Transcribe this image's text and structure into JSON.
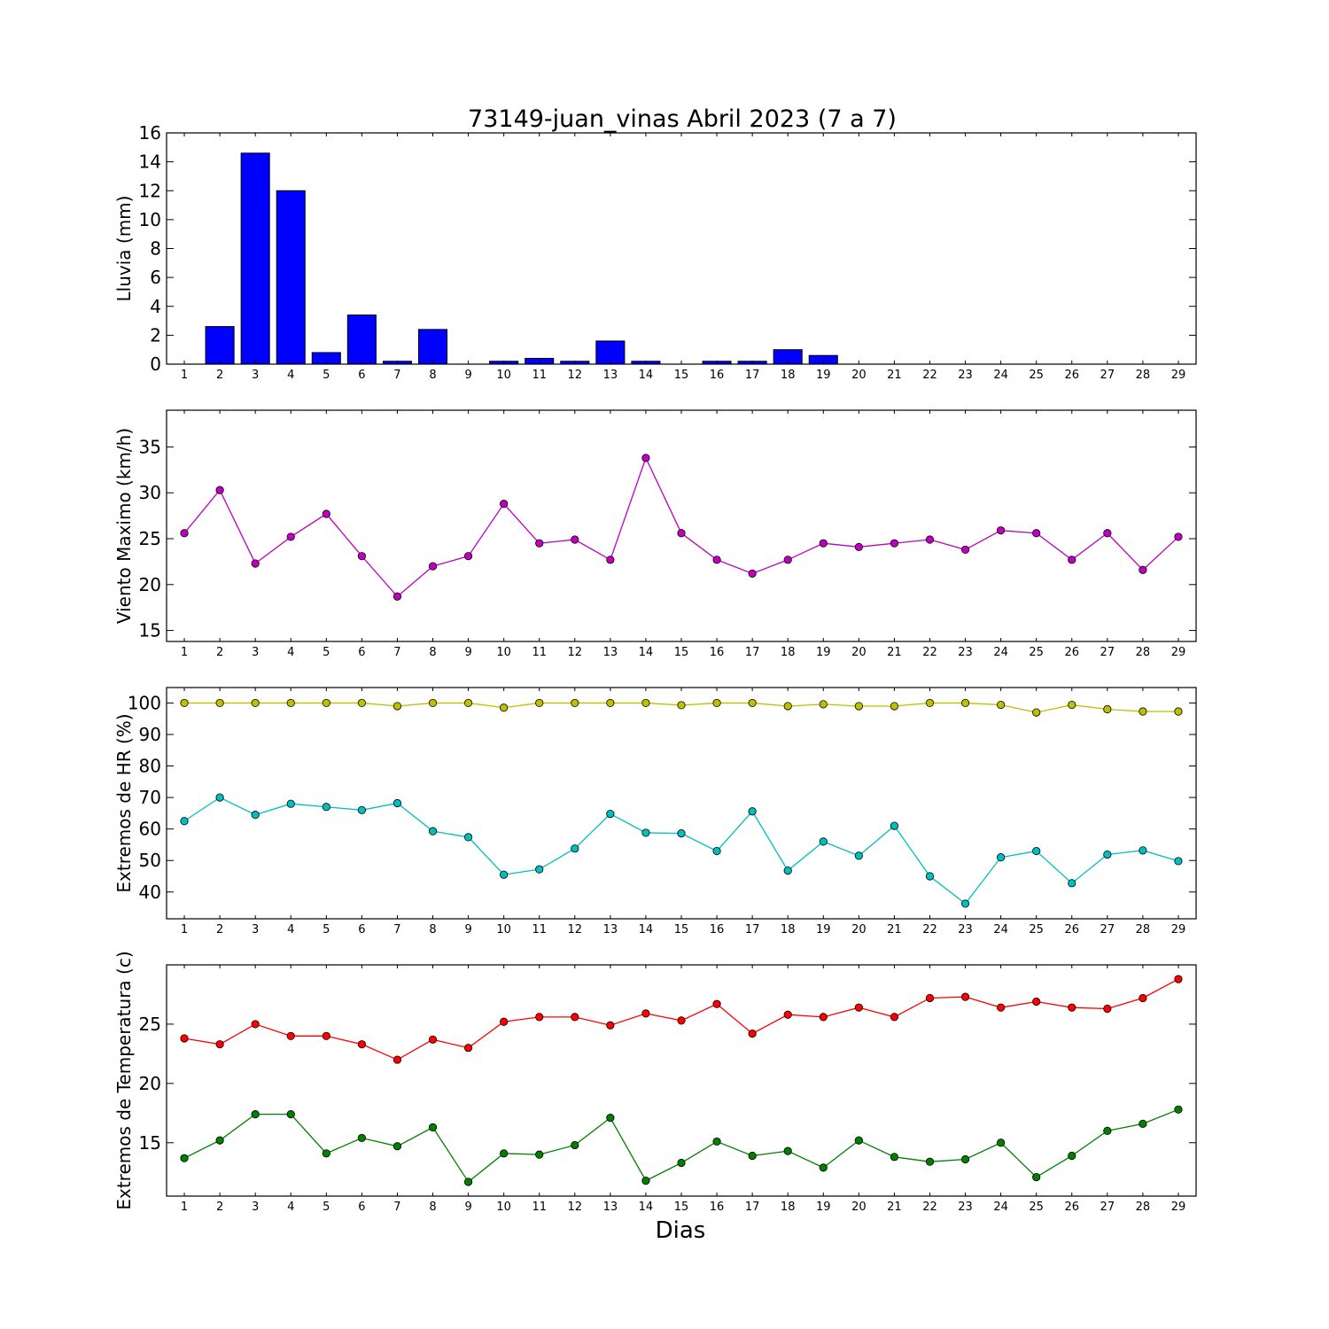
{
  "title": "73149-juan_vinas Abril 2023  (7 a 7)",
  "xlabel": "Dias",
  "chart_data": [
    {
      "type": "bar",
      "title": "73149-juan_vinas Abril 2023  (7 a 7)",
      "ylabel": "Lluvia (mm)",
      "xlabel": "",
      "x": [
        1,
        2,
        3,
        4,
        5,
        6,
        7,
        8,
        9,
        10,
        11,
        12,
        13,
        14,
        15,
        16,
        17,
        18,
        19,
        20,
        21,
        22,
        23,
        24,
        25,
        26,
        27,
        28,
        29
      ],
      "values": [
        0,
        2.6,
        14.6,
        12.0,
        0.8,
        3.4,
        0.2,
        2.4,
        0,
        0.2,
        0.4,
        0.2,
        1.6,
        0.2,
        0,
        0.2,
        0.2,
        1.0,
        0.6,
        0,
        0,
        0,
        0,
        0,
        0,
        0,
        0,
        0,
        0
      ],
      "ylim": [
        0,
        16
      ],
      "yticks": [
        0,
        2,
        4,
        6,
        8,
        10,
        12,
        14,
        16
      ],
      "xlim": [
        0.5,
        29.5
      ],
      "grid": false,
      "color": "#0000ff"
    },
    {
      "type": "line",
      "ylabel": "Viento Maximo (km/h)",
      "x": [
        1,
        2,
        3,
        4,
        5,
        6,
        7,
        8,
        9,
        10,
        11,
        12,
        13,
        14,
        15,
        16,
        17,
        18,
        19,
        20,
        21,
        22,
        23,
        24,
        25,
        26,
        27,
        28,
        29
      ],
      "series": [
        {
          "color": "#bf00bf",
          "values": [
            25.6,
            30.3,
            22.3,
            25.2,
            27.7,
            23.1,
            18.7,
            22.0,
            23.1,
            28.8,
            24.5,
            24.9,
            22.7,
            33.8,
            25.6,
            22.7,
            21.2,
            22.7,
            24.5,
            24.1,
            24.5,
            24.9,
            23.8,
            25.9,
            25.6,
            22.7,
            25.6,
            21.6,
            25.2
          ]
        }
      ],
      "ylim": [
        13.8,
        39
      ],
      "yticks": [
        15,
        20,
        25,
        30,
        35
      ],
      "xlim": [
        0.5,
        29.5
      ],
      "grid": false
    },
    {
      "type": "line",
      "ylabel": "Extremos de HR (%)",
      "x": [
        1,
        2,
        3,
        4,
        5,
        6,
        7,
        8,
        9,
        10,
        11,
        12,
        13,
        14,
        15,
        16,
        17,
        18,
        19,
        20,
        21,
        22,
        23,
        24,
        25,
        26,
        27,
        28,
        29
      ],
      "series": [
        {
          "color": "#bfbf00",
          "values": [
            100,
            100,
            100,
            100,
            100,
            100,
            99,
            100,
            100,
            98.5,
            100,
            100,
            100,
            100,
            99.3,
            100,
            100,
            99,
            99.6,
            99,
            99,
            100,
            100,
            99.4,
            97,
            99.4,
            98,
            97.3,
            97.3
          ]
        },
        {
          "color": "#00bfbf",
          "values": [
            62.5,
            70,
            64.5,
            68,
            67,
            66,
            68.2,
            59.3,
            57.4,
            45.5,
            47.2,
            53.8,
            64.8,
            58.8,
            58.6,
            53,
            65.6,
            46.8,
            56,
            51.5,
            61,
            45,
            36.3,
            51,
            53,
            42.8,
            51.9,
            53.2,
            49.8
          ]
        }
      ],
      "ylim": [
        31.5,
        104.9
      ],
      "yticks": [
        40,
        50,
        60,
        70,
        80,
        90,
        100
      ],
      "xlim": [
        0.5,
        29.5
      ],
      "grid": false
    },
    {
      "type": "line",
      "ylabel": "Extremos de Temperatura (c)",
      "xlabel": "Dias",
      "x": [
        1,
        2,
        3,
        4,
        5,
        6,
        7,
        8,
        9,
        10,
        11,
        12,
        13,
        14,
        15,
        16,
        17,
        18,
        19,
        20,
        21,
        22,
        23,
        24,
        25,
        26,
        27,
        28,
        29
      ],
      "series": [
        {
          "color": "#ff0000",
          "values": [
            23.8,
            23.3,
            25.0,
            24.0,
            24.0,
            23.3,
            22.0,
            23.7,
            23.0,
            25.2,
            25.6,
            25.6,
            24.9,
            25.9,
            25.3,
            26.7,
            24.2,
            25.8,
            25.6,
            26.4,
            25.6,
            27.2,
            27.3,
            26.4,
            26.9,
            26.4,
            26.3,
            27.2,
            28.8
          ]
        },
        {
          "color": "#007f00",
          "values": [
            13.7,
            15.2,
            17.4,
            17.4,
            14.1,
            15.4,
            14.7,
            16.3,
            11.7,
            14.1,
            14.0,
            14.8,
            17.1,
            11.8,
            13.3,
            15.1,
            13.9,
            14.3,
            12.9,
            15.2,
            13.8,
            13.4,
            13.6,
            15.0,
            12.1,
            13.9,
            16.0,
            16.6,
            17.8
          ]
        }
      ],
      "ylim": [
        10.5,
        30
      ],
      "yticks": [
        15,
        20,
        25
      ],
      "xlim": [
        0.5,
        29.5
      ],
      "grid": false
    }
  ]
}
